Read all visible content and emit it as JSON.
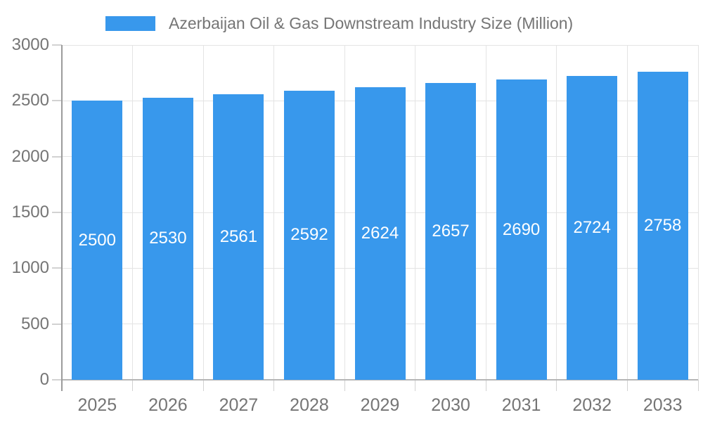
{
  "legend": {
    "label": "Azerbaijan Oil & Gas Downstream Industry Size (Million)"
  },
  "colors": {
    "bar": "#3898EC",
    "grid": "#E4E4E4",
    "tick": "#D2D2D2",
    "axis": "#9C9C9C",
    "baseline": "#B6B6B6",
    "text": "#757575",
    "bar_label": "#FFFFFF",
    "background": "#FFFFFF"
  },
  "chart_data": {
    "type": "bar",
    "title": "Azerbaijan Oil & Gas Downstream Industry Size (Million)",
    "categories": [
      "2025",
      "2026",
      "2027",
      "2028",
      "2029",
      "2030",
      "2031",
      "2032",
      "2033"
    ],
    "values": [
      2500,
      2530,
      2561,
      2592,
      2624,
      2657,
      2690,
      2724,
      2758
    ],
    "series": [
      {
        "name": "Azerbaijan Oil & Gas Downstream Industry Size (Million)",
        "values": [
          2500,
          2530,
          2561,
          2592,
          2624,
          2657,
          2690,
          2724,
          2758
        ]
      }
    ],
    "xlabel": "",
    "ylabel": "",
    "ylim": [
      0,
      3000
    ],
    "y_ticks": [
      0,
      500,
      1000,
      1500,
      2000,
      2500,
      3000
    ],
    "grid": true,
    "legend_position": "top",
    "bar_value_labels": true
  }
}
